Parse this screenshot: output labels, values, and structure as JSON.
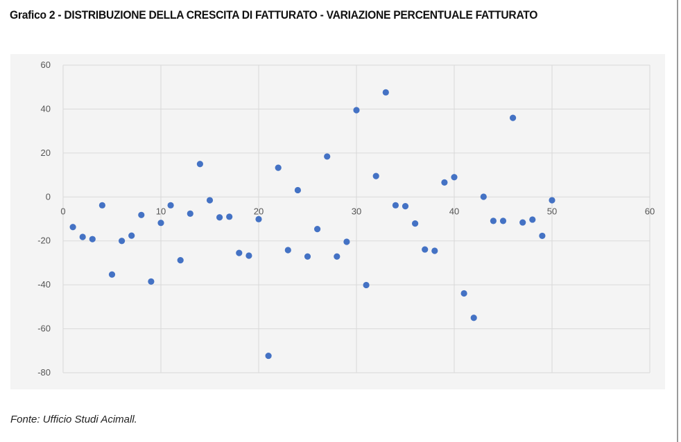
{
  "title": "Grafico 2 - DISTRIBUZIONE DELLA CRESCITA DI FATTURATO - VARIAZIONE PERCENTUALE FATTURATO",
  "source": "Fonte: Ufficio Studi Acimall.",
  "colors": {
    "point": "#4472c4",
    "grid": "#d9d9d9",
    "panel": "#f4f4f4"
  },
  "chart_data": {
    "type": "scatter",
    "title": "Grafico 2 - DISTRIBUZIONE DELLA CRESCITA DI FATTURATO - VARIAZIONE PERCENTUALE FATTURATO",
    "xlabel": "",
    "ylabel": "",
    "xlim": [
      0,
      60
    ],
    "ylim": [
      -80,
      60
    ],
    "xticks": [
      0,
      10,
      20,
      30,
      40,
      50,
      60
    ],
    "yticks": [
      60,
      40,
      20,
      0,
      -20,
      -40,
      -60,
      -80
    ],
    "grid": true,
    "legend": "none",
    "points": [
      {
        "x": 1,
        "y": -13.7
      },
      {
        "x": 2,
        "y": -18.2
      },
      {
        "x": 3,
        "y": -19.2
      },
      {
        "x": 4,
        "y": -3.8
      },
      {
        "x": 5,
        "y": -35.3
      },
      {
        "x": 6,
        "y": -20.0
      },
      {
        "x": 7,
        "y": -17.6
      },
      {
        "x": 8,
        "y": -8.2
      },
      {
        "x": 9,
        "y": -38.5
      },
      {
        "x": 10,
        "y": -11.8
      },
      {
        "x": 11,
        "y": -3.8
      },
      {
        "x": 12,
        "y": -28.8
      },
      {
        "x": 13,
        "y": -7.6
      },
      {
        "x": 14,
        "y": 15.0
      },
      {
        "x": 15,
        "y": -1.5
      },
      {
        "x": 16,
        "y": -9.3
      },
      {
        "x": 17,
        "y": -9.0
      },
      {
        "x": 18,
        "y": -25.5
      },
      {
        "x": 19,
        "y": -26.7
      },
      {
        "x": 20,
        "y": -10.1
      },
      {
        "x": 21,
        "y": -72.3
      },
      {
        "x": 22,
        "y": 13.3
      },
      {
        "x": 23,
        "y": -24.2
      },
      {
        "x": 24,
        "y": 3.1
      },
      {
        "x": 25,
        "y": -27.1
      },
      {
        "x": 26,
        "y": -14.6
      },
      {
        "x": 27,
        "y": 18.4
      },
      {
        "x": 28,
        "y": -27.1
      },
      {
        "x": 29,
        "y": -20.4
      },
      {
        "x": 30,
        "y": 39.5
      },
      {
        "x": 31,
        "y": -40.1
      },
      {
        "x": 32,
        "y": 9.5
      },
      {
        "x": 33,
        "y": 47.6
      },
      {
        "x": 34,
        "y": -3.8
      },
      {
        "x": 35,
        "y": -4.2
      },
      {
        "x": 36,
        "y": -12.1
      },
      {
        "x": 37,
        "y": -23.9
      },
      {
        "x": 38,
        "y": -24.5
      },
      {
        "x": 39,
        "y": 6.6
      },
      {
        "x": 40,
        "y": 9.0
      },
      {
        "x": 41,
        "y": -43.9
      },
      {
        "x": 42,
        "y": -55.0
      },
      {
        "x": 43,
        "y": 0.1
      },
      {
        "x": 44,
        "y": -10.9
      },
      {
        "x": 45,
        "y": -10.9
      },
      {
        "x": 46,
        "y": 36.0
      },
      {
        "x": 47,
        "y": -11.6
      },
      {
        "x": 48,
        "y": -10.3
      },
      {
        "x": 49,
        "y": -17.7
      },
      {
        "x": 50,
        "y": -1.5
      }
    ]
  }
}
